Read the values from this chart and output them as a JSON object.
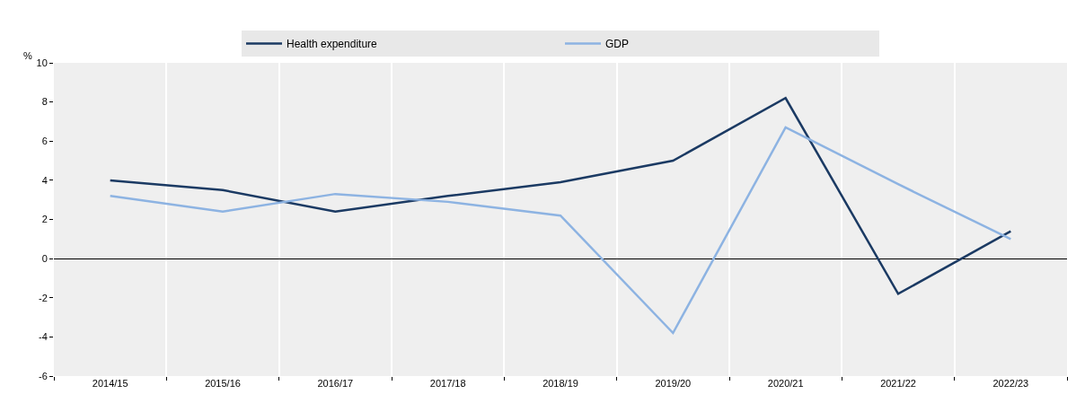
{
  "chart_data": {
    "type": "line",
    "ylabel": "%",
    "categories": [
      "2014/15",
      "2015/16",
      "2016/17",
      "2017/18",
      "2018/19",
      "2019/20",
      "2020/21",
      "2021/22",
      "2022/23"
    ],
    "series": [
      {
        "name": "Health expenditure",
        "color": "#1b3a63",
        "values": [
          4.0,
          3.5,
          2.4,
          3.2,
          3.9,
          5.0,
          8.2,
          -1.8,
          1.4
        ]
      },
      {
        "name": "GDP",
        "color": "#8db3e2",
        "values": [
          3.2,
          2.4,
          3.3,
          2.9,
          2.2,
          -3.8,
          6.7,
          3.8,
          1.0
        ]
      }
    ],
    "ylim": [
      -6,
      10
    ],
    "yticks": [
      -6,
      -4,
      -2,
      0,
      2,
      4,
      6,
      8,
      10
    ],
    "grid": "x",
    "legend": "top",
    "marker": "none",
    "line_style": "solid"
  }
}
